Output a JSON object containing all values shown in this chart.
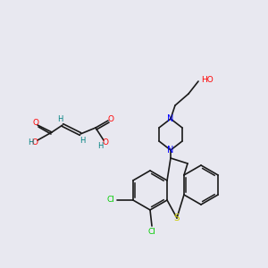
{
  "background_color": "#e8e8f0",
  "bond_color": "#1a1a1a",
  "atom_colors": {
    "O": "#ff0000",
    "N": "#0000ff",
    "S": "#cccc00",
    "Cl": "#00cc00",
    "H": "#008080",
    "C": "#1a1a1a"
  },
  "figsize": [
    3.0,
    3.0
  ],
  "dpi": 100
}
